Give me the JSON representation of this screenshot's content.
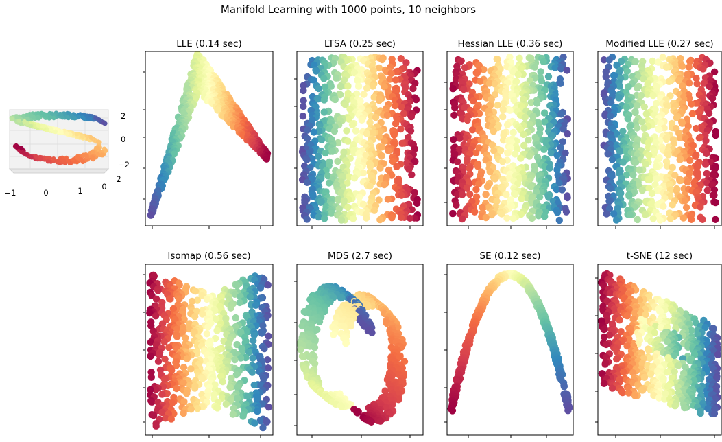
{
  "figure": {
    "title": "Manifold Learning with 1000 points, 10 neighbors"
  },
  "chart_data": [
    {
      "type": "scatter3d",
      "title": "",
      "description": "S-curve dataset colored by position along the curve (Spectral colormap)",
      "colormap": "Spectral",
      "x_ticks": [
        "−1",
        "0",
        "1"
      ],
      "y_ticks": [
        "0",
        "2"
      ],
      "z_ticks": [
        "2",
        "0",
        "−2"
      ],
      "xlim": [
        -1,
        1
      ],
      "ylim": [
        0,
        2
      ],
      "zlim": [
        -2,
        2
      ]
    },
    {
      "type": "scatter",
      "title": "LLE (0.14 sec)",
      "shape": "arch",
      "colormap": "Spectral"
    },
    {
      "type": "scatter",
      "title": "LTSA (0.25 sec)",
      "shape": "rectangle",
      "colormap": "Spectral",
      "direction": "blue-left-red-right"
    },
    {
      "type": "scatter",
      "title": "Hessian LLE (0.36 sec)",
      "shape": "rectangle",
      "colormap": "Spectral",
      "direction": "red-left-blue-right"
    },
    {
      "type": "scatter",
      "title": "Modified LLE (0.27 sec)",
      "shape": "rectangle",
      "colormap": "Spectral",
      "direction": "blue-left-red-right"
    },
    {
      "type": "scatter",
      "title": "Isomap (0.56 sec)",
      "shape": "bowtie",
      "colormap": "Spectral",
      "direction": "red-left-blue-right"
    },
    {
      "type": "scatter",
      "title": "MDS (2.7 sec)",
      "shape": "s-curve",
      "colormap": "Spectral"
    },
    {
      "type": "scatter",
      "title": "SE (0.12 sec)",
      "shape": "parabola",
      "colormap": "Spectral"
    },
    {
      "type": "scatter",
      "title": "t-SNE (12 sec)",
      "shape": "skewed-band",
      "colormap": "Spectral"
    }
  ]
}
